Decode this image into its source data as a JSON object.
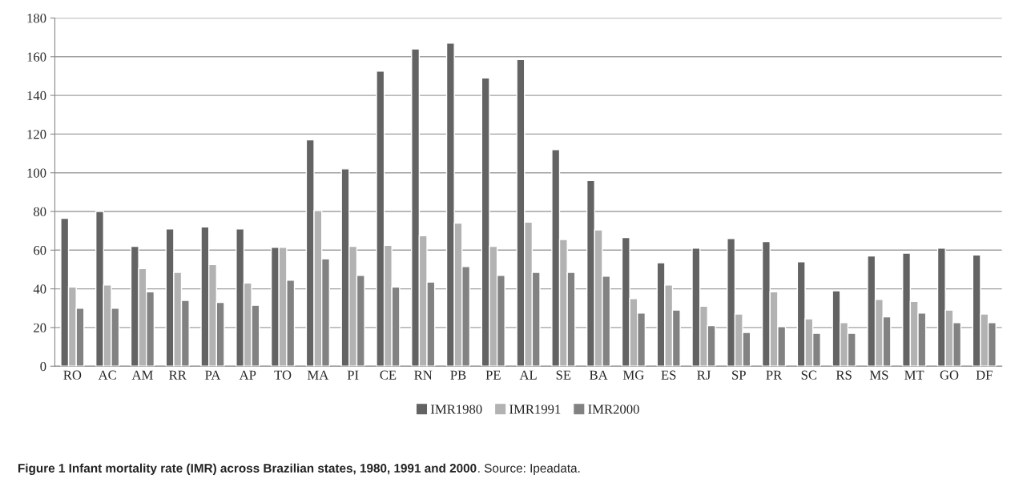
{
  "chart_data": {
    "type": "bar",
    "title": "Figure 1 Infant mortality rate (IMR) across Brazilian states, 1980, 1991 and 2000",
    "annotations": [
      ". Source: Ipeadata."
    ],
    "categories": [
      "RO",
      "AC",
      "AM",
      "RR",
      "PA",
      "AP",
      "TO",
      "MA",
      "PI",
      "CE",
      "RN",
      "PB",
      "PE",
      "AL",
      "SE",
      "BA",
      "MG",
      "ES",
      "RJ",
      "SP",
      "PR",
      "SC",
      "RS",
      "MS",
      "MT",
      "GO",
      "DF"
    ],
    "series": [
      {
        "name": "IMR1980",
        "color": "#636363",
        "values": [
          76.5,
          80,
          62,
          71,
          72,
          71,
          61.5,
          117,
          102,
          152.5,
          164,
          167,
          149,
          158.5,
          112,
          96,
          66.5,
          53.5,
          61,
          66,
          64.5,
          54,
          39,
          57,
          58.5,
          61,
          57.5
        ]
      },
      {
        "name": "IMR1991",
        "color": "#b2b2b2",
        "values": [
          41,
          42,
          50.5,
          48.5,
          52.5,
          43,
          61.5,
          80.5,
          62,
          62.5,
          67.5,
          74,
          62,
          74.5,
          65.5,
          70.5,
          35,
          42,
          31,
          27,
          38.5,
          24.5,
          22.5,
          34.5,
          33.5,
          29,
          27
        ]
      },
      {
        "name": "IMR2000",
        "color": "#828282",
        "values": [
          30,
          30,
          38.5,
          34,
          33,
          31.5,
          44.5,
          55.5,
          47,
          41,
          43.5,
          51.5,
          47,
          48.5,
          48.5,
          46.5,
          27.5,
          29,
          21,
          17.5,
          20.5,
          17,
          17,
          25.5,
          27.5,
          22.5,
          22.5
        ]
      }
    ],
    "ylim": [
      0,
      180
    ],
    "yticks": [
      0,
      20,
      40,
      60,
      80,
      100,
      120,
      140,
      160,
      180
    ],
    "grid": "y",
    "legend": "bottom"
  }
}
